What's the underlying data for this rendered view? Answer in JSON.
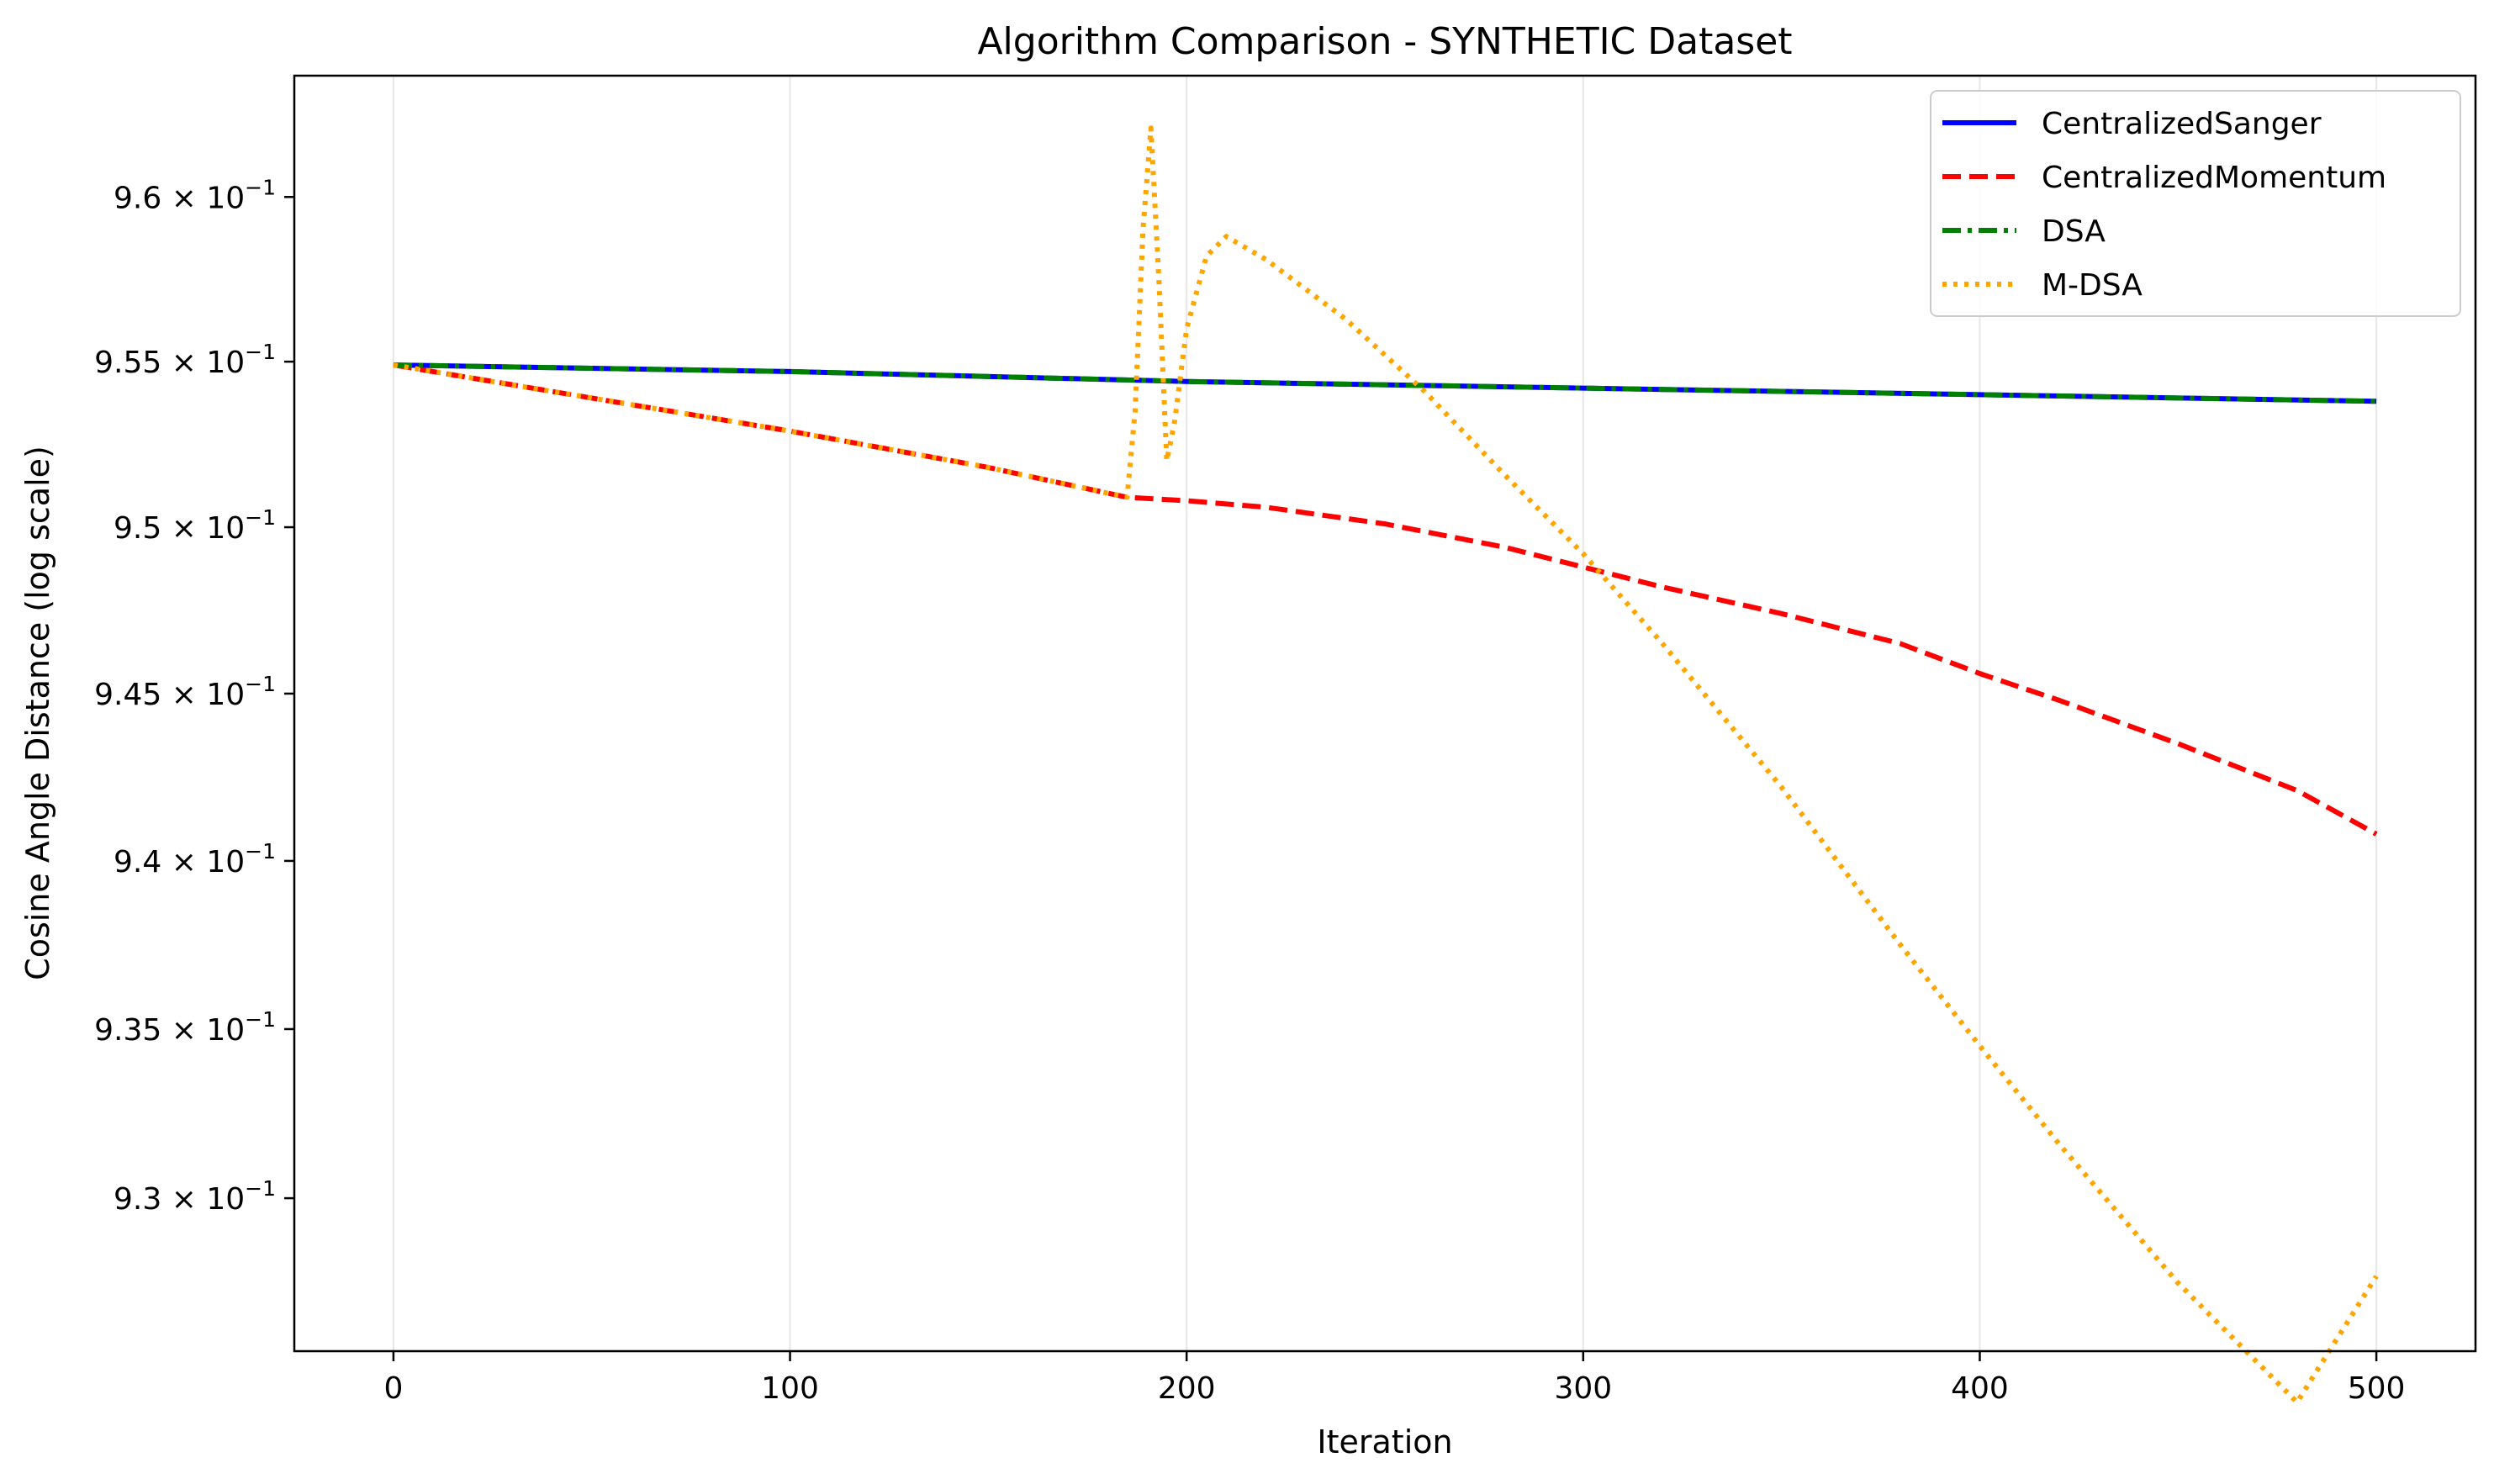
{
  "chart_data": {
    "type": "line",
    "title": "Algorithm Comparison - SYNTHETIC Dataset",
    "xlabel": "Iteration",
    "ylabel": "Cosine Angle Distance (log scale)",
    "yscale": "log",
    "grid": "vertical",
    "legend_position": "top-right",
    "xlim": [
      -25,
      525
    ],
    "ylim": [
      0.9255,
      0.9637
    ],
    "xticks": [
      0,
      100,
      200,
      300,
      400,
      500
    ],
    "yticks": [
      {
        "value": 0.93,
        "mantissa": "9.3",
        "base": "10",
        "exponent": "−1"
      },
      {
        "value": 0.935,
        "mantissa": "9.35",
        "base": "10",
        "exponent": "−1"
      },
      {
        "value": 0.94,
        "mantissa": "9.4",
        "base": "10",
        "exponent": "−1"
      },
      {
        "value": 0.945,
        "mantissa": "9.45",
        "base": "10",
        "exponent": "−1"
      },
      {
        "value": 0.95,
        "mantissa": "9.5",
        "base": "10",
        "exponent": "−1"
      },
      {
        "value": 0.955,
        "mantissa": "9.55",
        "base": "10",
        "exponent": "−1"
      },
      {
        "value": 0.96,
        "mantissa": "9.6",
        "base": "10",
        "exponent": "−1"
      }
    ],
    "series": [
      {
        "name": "CentralizedSanger",
        "color": "#0000ff",
        "style": "solid",
        "x": [
          0,
          100,
          200,
          300,
          400,
          500
        ],
        "y": [
          0.9549,
          0.9547,
          0.9544,
          0.9542,
          0.954,
          0.9538
        ]
      },
      {
        "name": "CentralizedMomentum",
        "color": "#ff0000",
        "style": "dashed",
        "x": [
          0,
          50,
          100,
          150,
          185,
          200,
          220,
          250,
          280,
          300,
          320,
          350,
          380,
          400,
          420,
          450,
          480,
          500
        ],
        "y": [
          0.9549,
          0.9539,
          0.9529,
          0.9518,
          0.9509,
          0.9508,
          0.9506,
          0.9501,
          0.9494,
          0.9488,
          0.9482,
          0.9474,
          0.9465,
          0.9456,
          0.9448,
          0.9435,
          0.9421,
          0.9408
        ]
      },
      {
        "name": "DSA",
        "color": "#008000",
        "style": "dashdot",
        "x": [
          0,
          100,
          200,
          300,
          400,
          500
        ],
        "y": [
          0.9549,
          0.9547,
          0.9544,
          0.9542,
          0.954,
          0.9538
        ]
      },
      {
        "name": "M-DSA",
        "color": "#ffa500",
        "style": "dotted",
        "x": [
          0,
          50,
          100,
          150,
          185,
          187,
          189,
          191,
          193,
          195,
          197,
          200,
          205,
          210,
          220,
          240,
          260,
          280,
          300,
          320,
          350,
          380,
          400,
          420,
          450,
          480,
          500
        ],
        "y": [
          0.9549,
          0.9539,
          0.9529,
          0.9518,
          0.9509,
          0.9535,
          0.959,
          0.9621,
          0.9575,
          0.952,
          0.9532,
          0.956,
          0.9582,
          0.9588,
          0.9581,
          0.9563,
          0.9541,
          0.9516,
          0.9492,
          0.9465,
          0.9422,
          0.9375,
          0.9345,
          0.9316,
          0.9275,
          0.924,
          0.9277
        ]
      }
    ]
  }
}
